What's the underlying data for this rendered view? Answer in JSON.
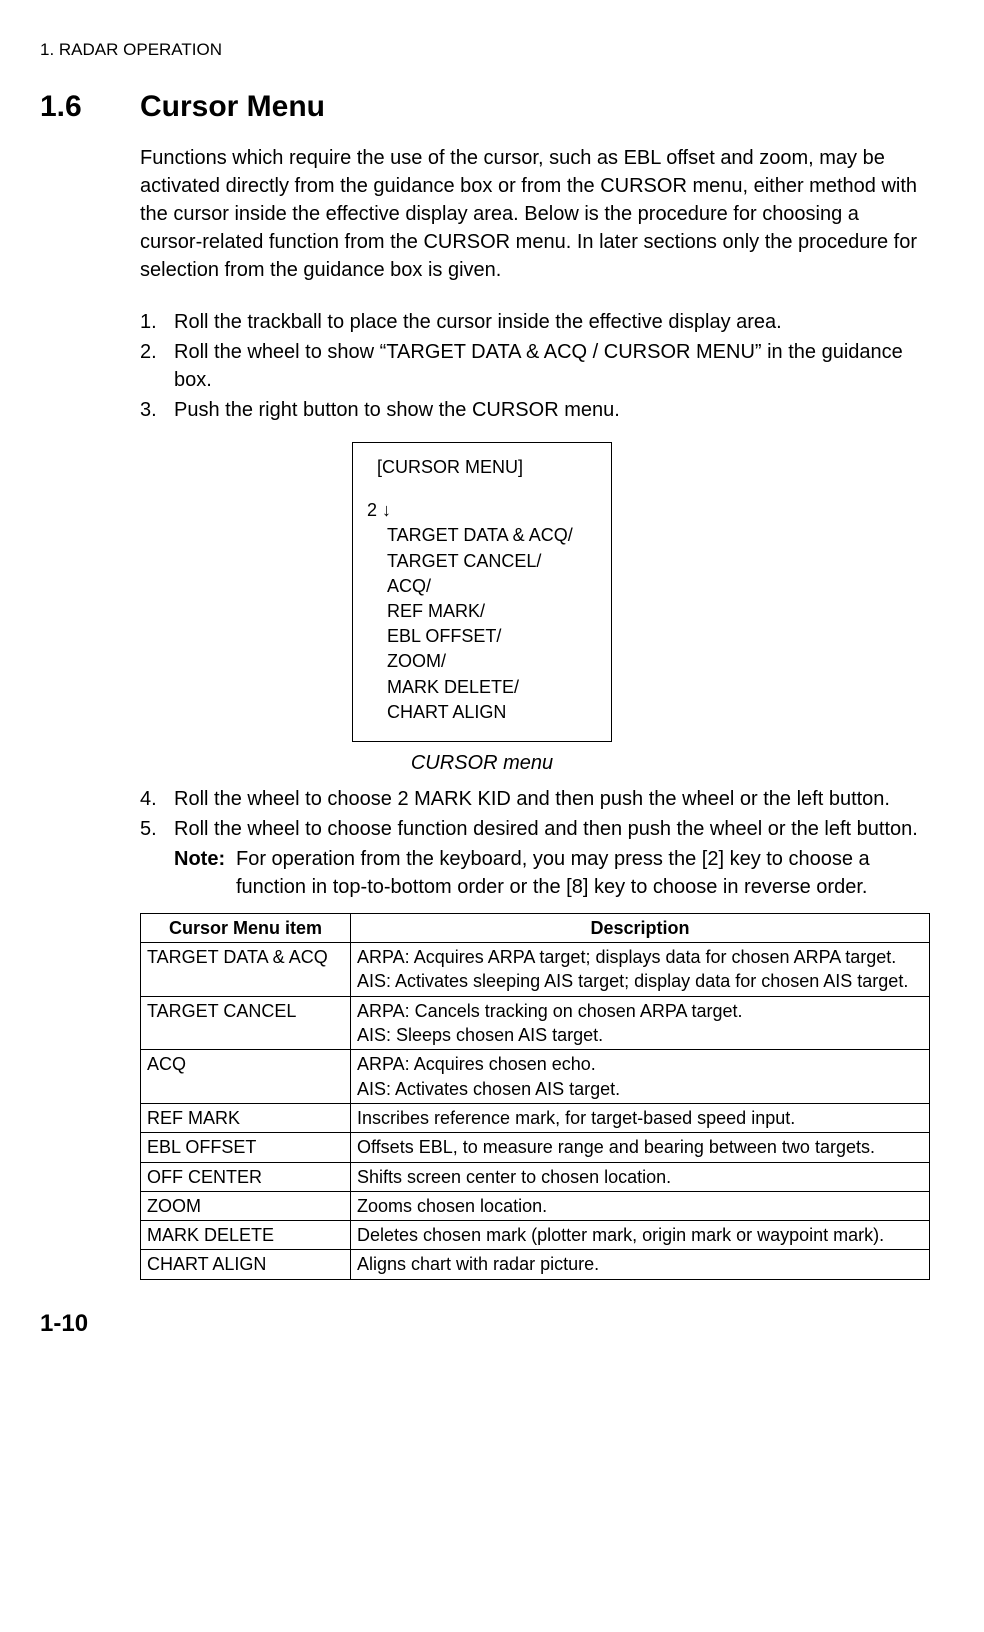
{
  "header": "1. RADAR OPERATION",
  "section": {
    "num": "1.6",
    "title": "Cursor Menu"
  },
  "intro": "Functions which require the use of the cursor, such as EBL offset and zoom, may be activated directly from the guidance box or from the CURSOR menu, either method with the cursor inside the effective display area. Below is the procedure for choosing a cursor-related function from the CURSOR menu. In later sections only the procedure for selection from the guidance box is given.",
  "steps1": [
    "Roll the trackball to place the cursor inside the effective display area.",
    "Roll the wheel to show “TARGET DATA & ACQ / CURSOR MENU” in the guidance box.",
    "Push the right button to show the CURSOR menu."
  ],
  "menu": {
    "title": "[CURSOR MENU]",
    "line2": "2  ↓",
    "items": [
      "TARGET DATA & ACQ/",
      "TARGET CANCEL/",
      "ACQ/",
      "REF MARK/",
      " EBL OFFSET/",
      " ZOOM/",
      " MARK DELETE/",
      " CHART ALIGN"
    ],
    "caption": "CURSOR menu"
  },
  "steps2": [
    "Roll the wheel to choose 2 MARK KID and then push the wheel or the left button.",
    "Roll the wheel to choose function desired and then push the wheel or the left button."
  ],
  "note": {
    "label": "Note:",
    "text": "For operation from the keyboard, you may press the [2] key to choose a function in top-to-bottom order or the [8] key to choose in reverse order."
  },
  "table": {
    "headers": [
      "Cursor Menu item",
      "Description"
    ],
    "rows": [
      [
        "TARGET DATA & ACQ",
        "ARPA: Acquires ARPA target; displays data for chosen ARPA target.\nAIS: Activates sleeping AIS target; display data for chosen AIS target."
      ],
      [
        "TARGET CANCEL",
        "ARPA: Cancels tracking on chosen ARPA target.\nAIS: Sleeps chosen AIS target."
      ],
      [
        "ACQ",
        "ARPA: Acquires chosen echo.\nAIS: Activates chosen AIS target."
      ],
      [
        "REF MARK",
        "Inscribes reference mark, for target-based speed input."
      ],
      [
        "EBL OFFSET",
        "Offsets EBL, to measure range and bearing between two targets."
      ],
      [
        "OFF CENTER",
        "Shifts screen center to chosen location."
      ],
      [
        "ZOOM",
        "Zooms chosen location."
      ],
      [
        "MARK DELETE",
        "Deletes chosen mark (plotter mark, origin mark or waypoint mark)."
      ],
      [
        "CHART ALIGN",
        "Aligns chart with radar picture."
      ]
    ]
  },
  "pageNum": "1-10"
}
